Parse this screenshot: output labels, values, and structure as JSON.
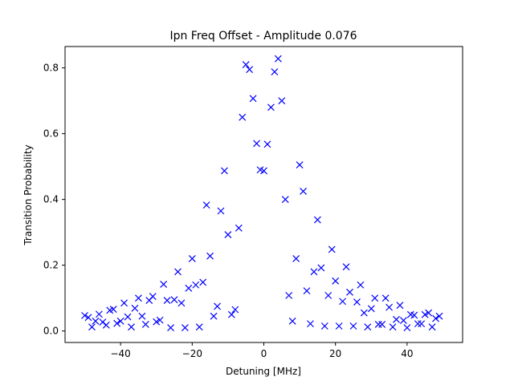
{
  "chart_data": {
    "type": "scatter",
    "title": "Ipn Freq Offset - Amplitude 0.076",
    "xlabel": "Detuning [MHz]",
    "ylabel": "Transition Probability",
    "xlim": [
      -55.5,
      55.5
    ],
    "ylim": [
      -0.035,
      0.865
    ],
    "xticks": [
      -40,
      -20,
      0,
      20,
      40
    ],
    "xtick_labels": [
      "−40",
      "−20",
      "0",
      "20",
      "40"
    ],
    "yticks": [
      0.0,
      0.2,
      0.4,
      0.6,
      0.8
    ],
    "ytick_labels": [
      "0.0",
      "0.2",
      "0.4",
      "0.6",
      "0.8"
    ],
    "grid": false,
    "marker": "x",
    "color": "#0000ff",
    "series": [
      {
        "points": [
          [
            -50,
            0.047
          ],
          [
            -49,
            0.041
          ],
          [
            -48,
            0.012
          ],
          [
            -47,
            0.03
          ],
          [
            -46,
            0.051
          ],
          [
            -45,
            0.027
          ],
          [
            -44,
            0.018
          ],
          [
            -43,
            0.063
          ],
          [
            -42,
            0.066
          ],
          [
            -41,
            0.023
          ],
          [
            -40,
            0.03
          ],
          [
            -39,
            0.085
          ],
          [
            -38,
            0.043
          ],
          [
            -37,
            0.012
          ],
          [
            -36,
            0.069
          ],
          [
            -35,
            0.1
          ],
          [
            -34,
            0.045
          ],
          [
            -33,
            0.02
          ],
          [
            -32,
            0.093
          ],
          [
            -31,
            0.105
          ],
          [
            -30,
            0.028
          ],
          [
            -29,
            0.033
          ],
          [
            -28,
            0.142
          ],
          [
            -27,
            0.093
          ],
          [
            -26,
            0.01
          ],
          [
            -25,
            0.095
          ],
          [
            -24,
            0.18
          ],
          [
            -23,
            0.085
          ],
          [
            -22,
            0.01
          ],
          [
            -21,
            0.13
          ],
          [
            -20,
            0.22
          ],
          [
            -19,
            0.14
          ],
          [
            -18,
            0.012
          ],
          [
            -17,
            0.148
          ],
          [
            -16,
            0.383
          ],
          [
            -15,
            0.228
          ],
          [
            -14,
            0.045
          ],
          [
            -13,
            0.075
          ],
          [
            -12,
            0.365
          ],
          [
            -11,
            0.487
          ],
          [
            -10,
            0.293
          ],
          [
            -9,
            0.05
          ],
          [
            -8,
            0.065
          ],
          [
            -7,
            0.313
          ],
          [
            -6,
            0.65
          ],
          [
            -5,
            0.81
          ],
          [
            -4,
            0.795
          ],
          [
            -3,
            0.707
          ],
          [
            -2,
            0.57
          ],
          [
            -1,
            0.49
          ],
          [
            0,
            0.487
          ],
          [
            1,
            0.568
          ],
          [
            2,
            0.68
          ],
          [
            3,
            0.788
          ],
          [
            4,
            0.828
          ],
          [
            5,
            0.7
          ],
          [
            6,
            0.4
          ],
          [
            7,
            0.108
          ],
          [
            8,
            0.03
          ],
          [
            9,
            0.22
          ],
          [
            10,
            0.505
          ],
          [
            11,
            0.425
          ],
          [
            12,
            0.122
          ],
          [
            13,
            0.022
          ],
          [
            14,
            0.18
          ],
          [
            15,
            0.338
          ],
          [
            16,
            0.192
          ],
          [
            17,
            0.015
          ],
          [
            18,
            0.108
          ],
          [
            19,
            0.248
          ],
          [
            20,
            0.152
          ],
          [
            21,
            0.015
          ],
          [
            22,
            0.09
          ],
          [
            23,
            0.195
          ],
          [
            24,
            0.118
          ],
          [
            25,
            0.015
          ],
          [
            26,
            0.088
          ],
          [
            27,
            0.14
          ],
          [
            28,
            0.055
          ],
          [
            29,
            0.012
          ],
          [
            30,
            0.068
          ],
          [
            31,
            0.1
          ],
          [
            32,
            0.02
          ],
          [
            33,
            0.02
          ],
          [
            34,
            0.1
          ],
          [
            35,
            0.072
          ],
          [
            36,
            0.012
          ],
          [
            37,
            0.035
          ],
          [
            38,
            0.078
          ],
          [
            39,
            0.032
          ],
          [
            40,
            0.01
          ],
          [
            41,
            0.05
          ],
          [
            42,
            0.048
          ],
          [
            43,
            0.022
          ],
          [
            44,
            0.022
          ],
          [
            45,
            0.05
          ],
          [
            46,
            0.055
          ],
          [
            47,
            0.012
          ],
          [
            48,
            0.038
          ],
          [
            49,
            0.045
          ]
        ]
      }
    ]
  }
}
